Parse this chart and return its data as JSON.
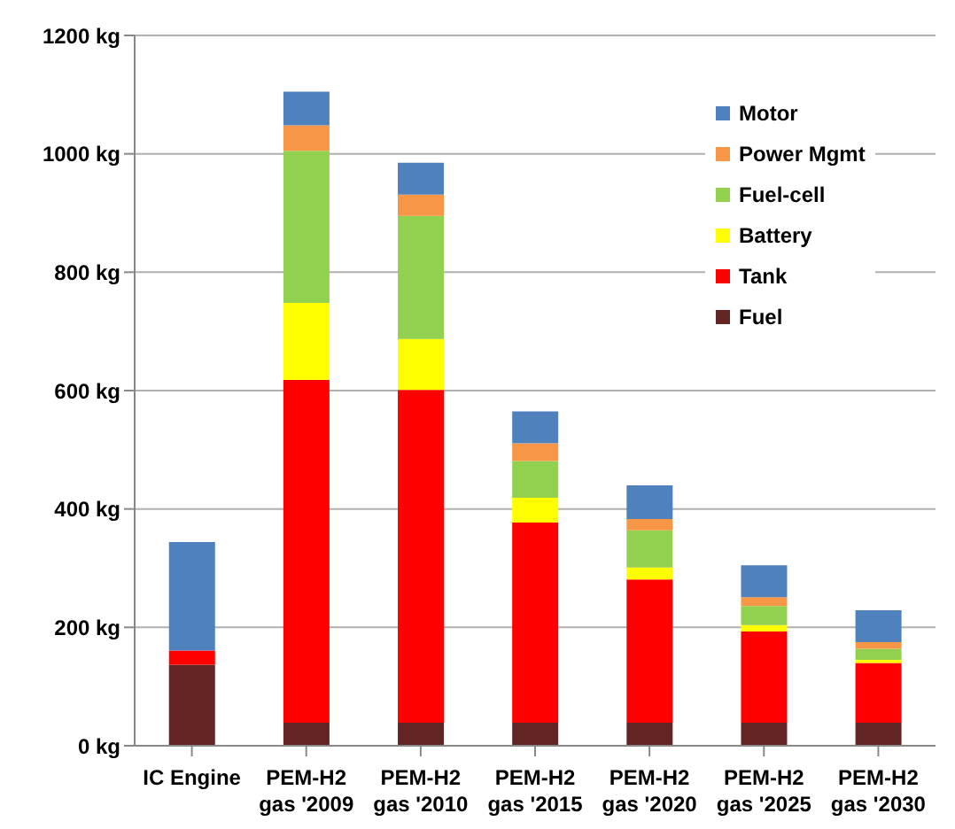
{
  "chart_data": {
    "type": "bar",
    "stacked": true,
    "categories": [
      "IC Engine",
      "PEM-H2 gas '2009",
      "PEM-H2 gas '2010",
      "PEM-H2 gas '2015",
      "PEM-H2 gas '2020",
      "PEM-H2 gas '2025",
      "PEM-H2 gas '2030"
    ],
    "series": [
      {
        "name": "Fuel",
        "color": "#632523",
        "values": [
          137,
          39,
          39,
          39,
          39,
          39,
          39
        ]
      },
      {
        "name": "Tank",
        "color": "#ff0000",
        "values": [
          24,
          579,
          562,
          338,
          242,
          154,
          101
        ]
      },
      {
        "name": "Battery",
        "color": "#ffff00",
        "values": [
          0,
          130,
          86,
          42,
          20,
          11,
          5
        ]
      },
      {
        "name": "Fuel-cell",
        "color": "#92d050",
        "values": [
          0,
          257,
          208,
          62,
          63,
          32,
          19
        ]
      },
      {
        "name": "Power Mgmt",
        "color": "#f79646",
        "values": [
          0,
          43,
          36,
          30,
          19,
          15,
          11
        ]
      },
      {
        "name": "Motor",
        "color": "#4f81bd",
        "values": [
          183,
          57,
          54,
          54,
          57,
          54,
          54
        ]
      }
    ],
    "ylim": [
      0,
      1200
    ],
    "yticks": [
      {
        "value": 0,
        "label": "0   kg"
      },
      {
        "value": 200,
        "label": "200 kg"
      },
      {
        "value": 400,
        "label": "400 kg"
      },
      {
        "value": 600,
        "label": "600 kg"
      },
      {
        "value": 800,
        "label": "800 kg"
      },
      {
        "value": 1000,
        "label": "1000 kg"
      },
      {
        "value": 1200,
        "label": "1200 kg"
      }
    ],
    "grid": "y",
    "legend": "top right"
  }
}
